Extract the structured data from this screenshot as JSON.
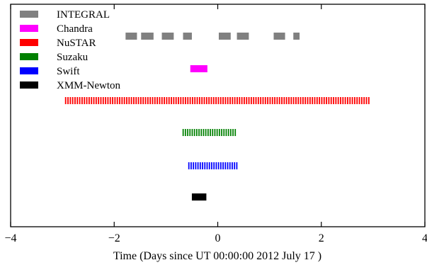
{
  "chart_data": {
    "type": "timeline",
    "title": "",
    "xlabel": "Time (Days since UT 00:00:00 2012 July 17 )",
    "ylabel": "",
    "xlim": [
      -4,
      4
    ],
    "xticks": [
      {
        "value": -4,
        "label": "−4"
      },
      {
        "value": -2,
        "label": "−2"
      },
      {
        "value": 0,
        "label": "0"
      },
      {
        "value": 2,
        "label": "2"
      },
      {
        "value": 4,
        "label": "4"
      }
    ],
    "grid": false,
    "legend": "top-left",
    "series": [
      {
        "name": "INTEGRAL",
        "color": "#808080",
        "intervals": [
          [
            -1.78,
            -1.56
          ],
          [
            -1.48,
            -1.24
          ],
          [
            -1.08,
            -0.85
          ],
          [
            -0.67,
            -0.5
          ],
          [
            0.02,
            0.25
          ],
          [
            0.37,
            0.6
          ],
          [
            1.08,
            1.3
          ],
          [
            1.46,
            1.58
          ]
        ]
      },
      {
        "name": "Chandra",
        "color": "#ff00ff",
        "intervals": [
          [
            -0.53,
            -0.2
          ]
        ]
      },
      {
        "name": "NuSTAR",
        "color": "#ff0000",
        "intervals": [
          [
            -2.95,
            2.95
          ]
        ],
        "dash_count": 130
      },
      {
        "name": "Suzaku",
        "color": "#008000",
        "intervals": [
          [
            -0.68,
            0.37
          ]
        ],
        "dash_count": 24
      },
      {
        "name": "Swift",
        "color": "#0000ff",
        "intervals": [
          [
            -0.57,
            0.4
          ]
        ],
        "dash_count": 22
      },
      {
        "name": "XMM-Newton",
        "color": "#000000",
        "intervals": [
          [
            -0.5,
            -0.22
          ]
        ]
      }
    ]
  }
}
